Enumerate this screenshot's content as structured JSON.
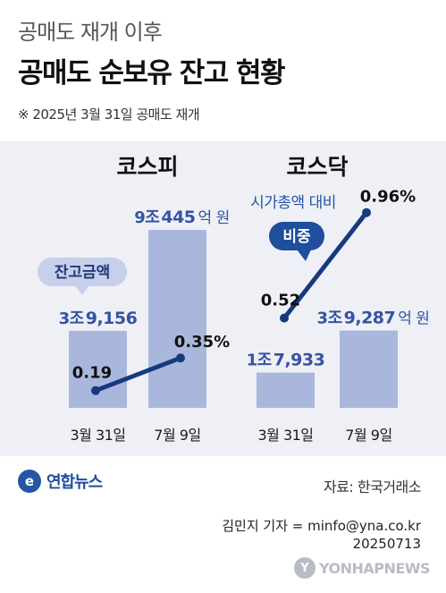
{
  "header": {
    "subtitle": "공매도 재개 이후",
    "title": "공매도 순보유 잔고 현황",
    "note": "※ 2025년 3월 31일 공매도 재개"
  },
  "chart_data": [
    {
      "type": "bar+line",
      "panel_title": "코스피",
      "categories": [
        "3월 31일",
        "7월 9일"
      ],
      "bar_series": {
        "name": "잔고금액",
        "values": [
          3.9156,
          9.0445
        ],
        "labels": [
          {
            "a": "3조",
            "b": "9,156",
            "c": ""
          },
          {
            "a": "9조",
            "b": "445",
            "c": "억 원"
          }
        ]
      },
      "line_series": {
        "name": "시가총액 대비 비중",
        "values": [
          0.19,
          0.35
        ],
        "labels": [
          "0.19",
          "0.35%"
        ]
      },
      "ylim_bars": [
        0,
        10
      ],
      "ylim_line": [
        0,
        1
      ]
    },
    {
      "type": "bar+line",
      "panel_title": "코스닥",
      "categories": [
        "3월 31일",
        "7월 9일"
      ],
      "bar_series": {
        "name": "잔고금액",
        "values": [
          1.7933,
          3.9287
        ],
        "labels": [
          {
            "a": "1조",
            "b": "7,933",
            "c": ""
          },
          {
            "a": "3조",
            "b": "9,287",
            "c": "억 원"
          }
        ]
      },
      "line_series": {
        "name": "시가총액 대비 비중",
        "values": [
          0.52,
          0.96
        ],
        "labels": [
          "0.52",
          "0.96%"
        ]
      },
      "ylim_bars": [
        0,
        10
      ],
      "ylim_line": [
        0,
        1
      ]
    }
  ],
  "callouts": {
    "bar_label": "잔고금액",
    "line_label_top": "시가총액 대비",
    "line_label_badge": "비중"
  },
  "colors": {
    "bar": "#aab7dc",
    "line": "#163a7d",
    "panel_bg": "#eef0f6",
    "callout_bg": "#c7d0ea",
    "badge_bg": "#1f4f9c"
  },
  "footer": {
    "logo_text": "연합뉴스",
    "source": "자료: 한국거래소",
    "credit_line1": "김민지 기자 = minfo@yna.co.kr",
    "credit_line2": "20250713",
    "watermark": "YONHAPNEWS"
  }
}
